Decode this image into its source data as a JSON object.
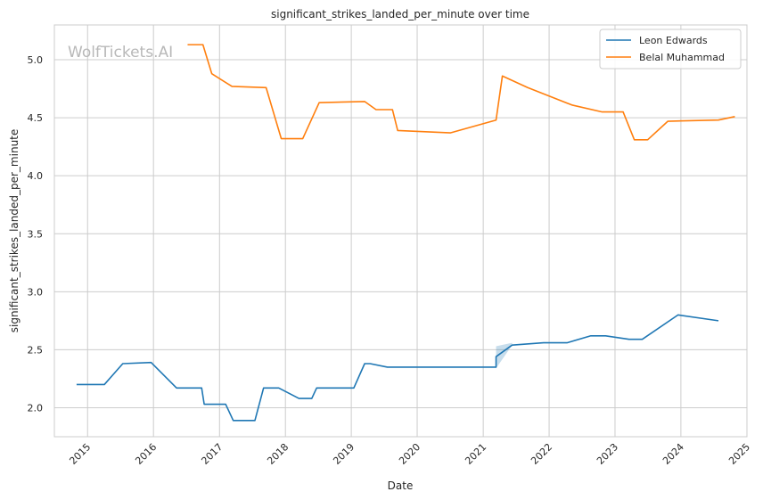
{
  "chart_data": {
    "type": "line",
    "title": "significant_strikes_landed_per_minute over time",
    "xlabel": "Date",
    "ylabel": "significant_strikes_landed_per_minute",
    "watermark": "WolfTickets.AI",
    "xlim": [
      "2014-07-01",
      "2025-01-01"
    ],
    "ylim": [
      1.75,
      5.3
    ],
    "x_ticks": [
      "2015",
      "2016",
      "2017",
      "2018",
      "2019",
      "2020",
      "2021",
      "2022",
      "2023",
      "2024",
      "2025"
    ],
    "y_ticks": [
      "2.0",
      "2.5",
      "3.0",
      "3.5",
      "4.0",
      "4.5",
      "5.0"
    ],
    "grid": true,
    "legend_position": "top-right",
    "series": [
      {
        "name": "Leon Edwards",
        "color": "#1f77b4",
        "points": [
          [
            "2014-11-01",
            2.2
          ],
          [
            "2015-04-04",
            2.2
          ],
          [
            "2015-07-15",
            2.38
          ],
          [
            "2015-12-19",
            2.39
          ],
          [
            "2016-05-08",
            2.17
          ],
          [
            "2016-09-24",
            2.17
          ],
          [
            "2016-10-08",
            2.03
          ],
          [
            "2017-02-04",
            2.03
          ],
          [
            "2017-03-18",
            1.89
          ],
          [
            "2017-07-16",
            1.89
          ],
          [
            "2017-09-02",
            2.17
          ],
          [
            "2017-11-25",
            2.17
          ],
          [
            "2018-03-17",
            2.08
          ],
          [
            "2018-05-27",
            2.08
          ],
          [
            "2018-06-23",
            2.17
          ],
          [
            "2019-01-15",
            2.17
          ],
          [
            "2019-03-16",
            2.38
          ],
          [
            "2019-04-15",
            2.38
          ],
          [
            "2019-07-20",
            2.35
          ],
          [
            "2021-03-13",
            2.35
          ],
          [
            "2021-03-13",
            2.44
          ],
          [
            "2021-06-10",
            2.54
          ],
          [
            "2021-12-01",
            2.56
          ],
          [
            "2022-04-10",
            2.56
          ],
          [
            "2022-08-20",
            2.62
          ],
          [
            "2022-11-10",
            2.62
          ],
          [
            "2023-03-20",
            2.59
          ],
          [
            "2023-06-01",
            2.59
          ],
          [
            "2023-12-16",
            2.8
          ],
          [
            "2024-07-27",
            2.75
          ]
        ],
        "band": [
          [
            "2021-03-13",
            2.34,
            2.53
          ],
          [
            "2021-06-10",
            2.54,
            2.56
          ]
        ]
      },
      {
        "name": "Belal Muhammad",
        "color": "#ff7f0e",
        "points": [
          [
            "2016-07-08",
            5.13
          ],
          [
            "2016-10-01",
            5.13
          ],
          [
            "2016-11-19",
            4.88
          ],
          [
            "2017-03-11",
            4.77
          ],
          [
            "2017-09-16",
            4.76
          ],
          [
            "2017-12-09",
            4.32
          ],
          [
            "2018-04-07",
            4.32
          ],
          [
            "2018-07-07",
            4.63
          ],
          [
            "2019-03-16",
            4.64
          ],
          [
            "2019-05-18",
            4.57
          ],
          [
            "2019-08-17",
            4.57
          ],
          [
            "2019-09-15",
            4.39
          ],
          [
            "2020-07-04",
            4.37
          ],
          [
            "2021-03-13",
            4.48
          ],
          [
            "2021-04-17",
            4.86
          ],
          [
            "2021-09-04",
            4.76
          ],
          [
            "2022-05-07",
            4.61
          ],
          [
            "2022-10-22",
            4.55
          ],
          [
            "2023-02-15",
            4.55
          ],
          [
            "2023-04-18",
            4.31
          ],
          [
            "2023-07-01",
            4.31
          ],
          [
            "2023-10-21",
            4.47
          ],
          [
            "2024-07-27",
            4.48
          ],
          [
            "2024-10-26",
            4.51
          ]
        ]
      }
    ]
  }
}
